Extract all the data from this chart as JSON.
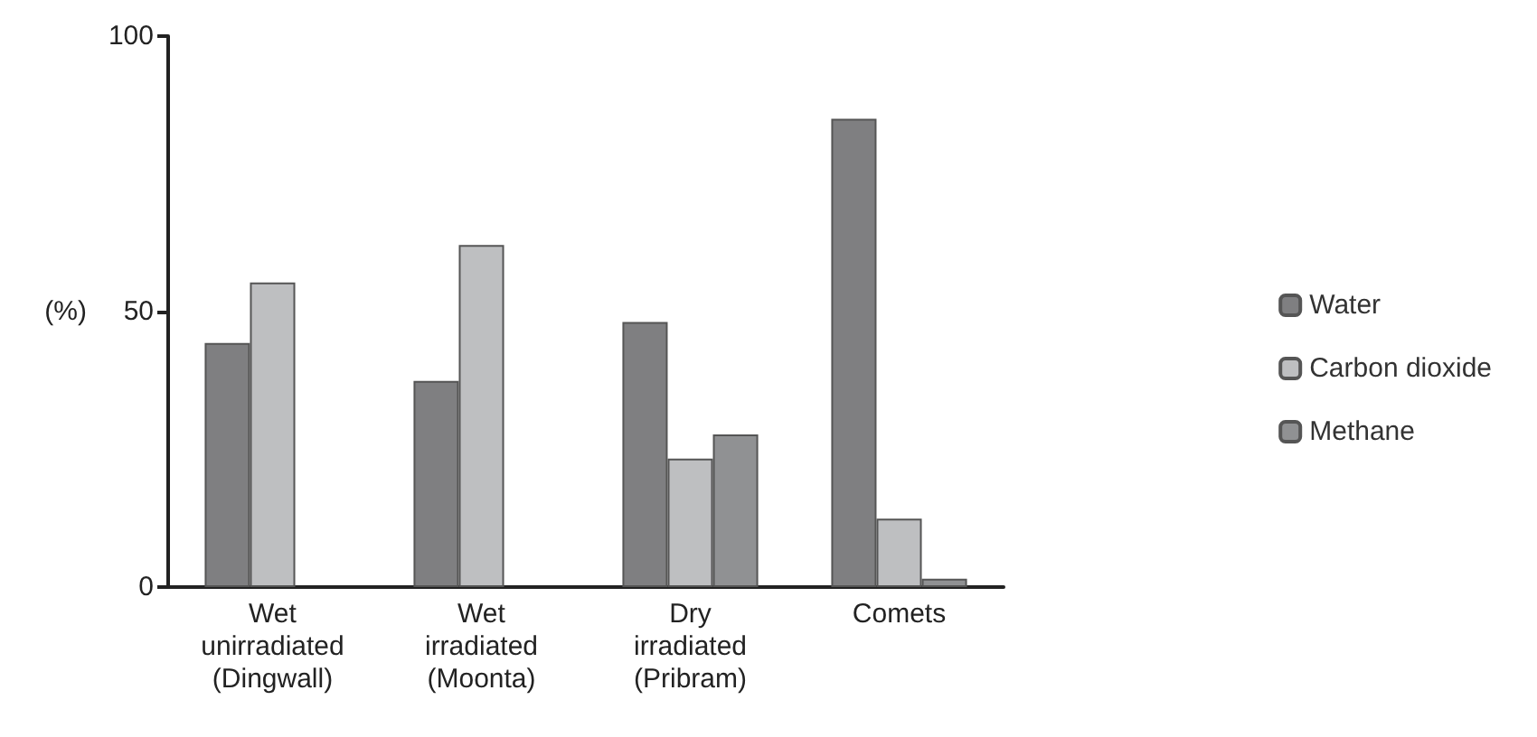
{
  "chart_data": {
    "type": "bar",
    "ylabel": "(%)",
    "categories": [
      "Wet\nunirradiated\n(Dingwall)",
      "Wet\nirradiated\n(Moonta)",
      "Dry\nirradiated\n(Pribram)",
      "Comets"
    ],
    "series": [
      {
        "name": "Water",
        "color": "#7f7f81",
        "values": [
          44.3,
          37.4,
          48.1,
          85
        ]
      },
      {
        "name": "Carbon dioxide",
        "color": "#bebfc1",
        "values": [
          55.3,
          62.1,
          23.3,
          12.4
        ]
      },
      {
        "name": "Methane",
        "color": "#909193",
        "values": [
          null,
          null,
          27.7,
          1.5
        ]
      }
    ],
    "ylim": [
      0,
      100
    ],
    "yticks": [
      0,
      50,
      100
    ],
    "grid": false,
    "legend": "right"
  }
}
